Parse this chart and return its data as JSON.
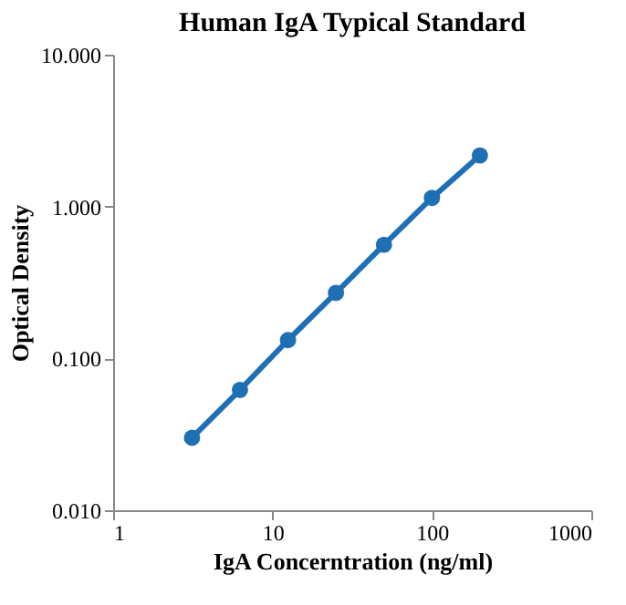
{
  "chart_data": {
    "type": "line",
    "title": "Human IgA Typical Standard",
    "xlabel": "IgA Concerntration (ng/ml)",
    "ylabel": "Optical Density",
    "x": [
      3.125,
      6.25,
      12.5,
      25,
      50,
      100,
      200
    ],
    "series": [
      {
        "color": "#1f6fb5",
        "values": [
          0.03,
          0.062,
          0.132,
          0.27,
          0.56,
          1.14,
          2.17
        ]
      }
    ],
    "log": "xy",
    "marker": "circle",
    "line_style": "solid",
    "grid": false,
    "xlim": [
      1,
      1000
    ],
    "xticks": [
      1,
      10,
      100,
      1000
    ],
    "ylim": [
      0.01,
      10
    ],
    "yticks": [
      {
        "value": 0.01,
        "label": "0.010"
      },
      {
        "value": 0.1,
        "label": "0.100"
      },
      {
        "value": 1,
        "label": "1.000"
      },
      {
        "value": 10,
        "label": "10.000"
      }
    ]
  }
}
